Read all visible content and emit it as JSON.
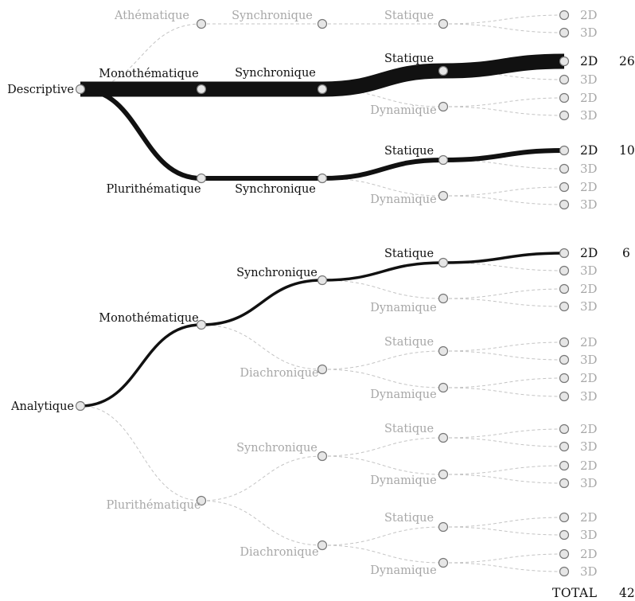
{
  "labels": {
    "descriptive": "Descriptive",
    "analytique": "Analytique",
    "athematique": "Athématique",
    "monothematique": "Monothématique",
    "pluritematique": "Plurithématique",
    "synchronique": "Synchronique",
    "diachronique": "Diachronique",
    "statique": "Statique",
    "dynamique": "Dynamique",
    "d2": "2D",
    "d3": "3D",
    "total": "TOTAL"
  },
  "counts": {
    "descriptive_mono_sync_statique_2d": "26",
    "descriptive_pluri_sync_statique_2d": "10",
    "analytique_mono_sync_statique_2d": "6",
    "total": "42"
  },
  "colors": {
    "active": "#111111",
    "inactive_text": "#a8a8a8",
    "inactive_line": "#c4c4c4",
    "node_fill": "#e6e6e6",
    "node_stroke": "#777777"
  }
}
